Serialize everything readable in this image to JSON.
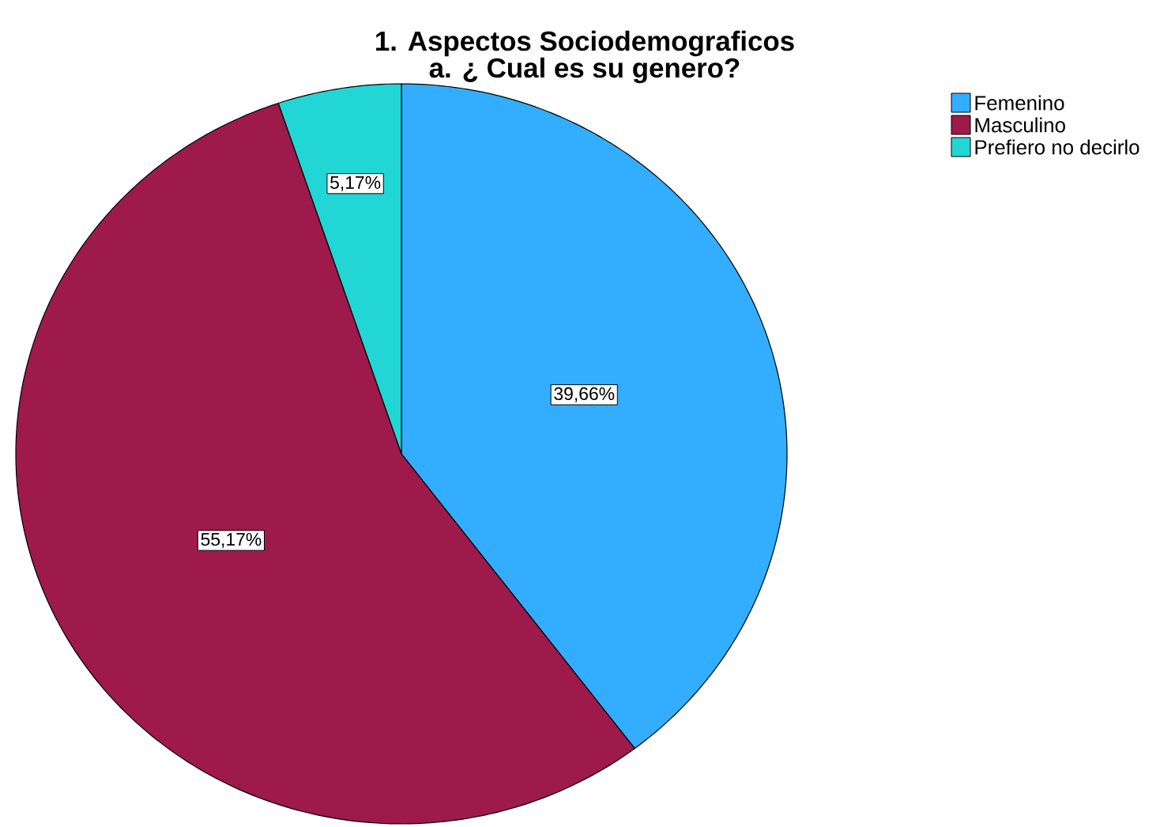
{
  "chart_data": {
    "type": "pie",
    "title": "1. Aspectos Sociodemograficos",
    "subtitle": "a. ¿ Cual es su genero?",
    "categories": [
      "Femenino",
      "Masculino",
      "Prefiero no decirlo"
    ],
    "values": [
      39.66,
      55.17,
      5.17
    ],
    "colors": [
      "#33adff",
      "#9e1a4b",
      "#22d6d6"
    ],
    "value_labels": [
      "39,66%",
      "55,17%",
      "5,17%"
    ],
    "legend": "top right"
  }
}
